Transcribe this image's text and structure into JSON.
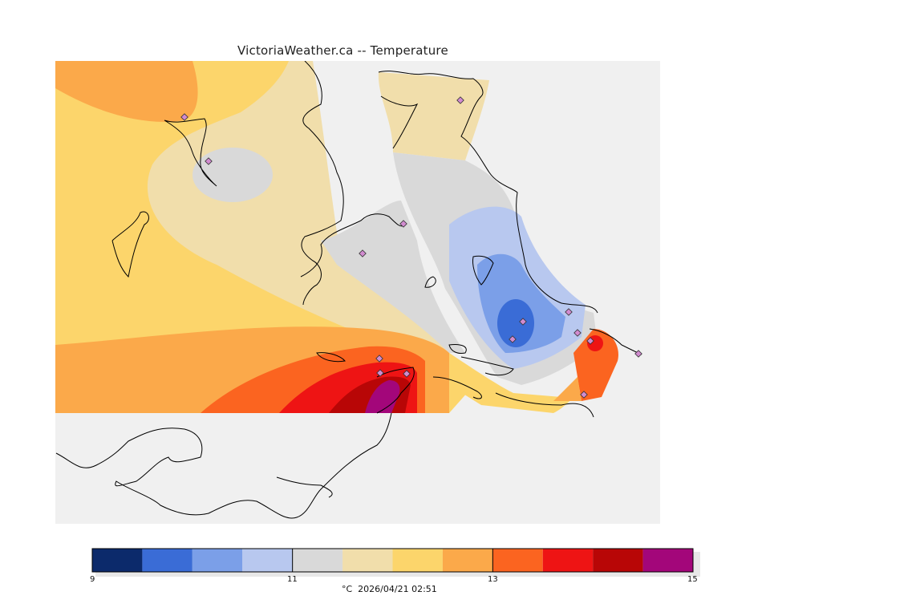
{
  "title": "VictoriaWeather.ca -- Temperature",
  "map": {
    "variable": "Temperature",
    "units": "°C",
    "timestamp": "2026/04/21 02:51",
    "stations": 15
  },
  "legend": {
    "min": 9,
    "max": 15,
    "tick_labels": [
      "9",
      "11",
      "13",
      "15"
    ],
    "bins": [
      {
        "from": 9.0,
        "to": 9.5,
        "color": "#0c2a6b"
      },
      {
        "from": 9.5,
        "to": 10.0,
        "color": "#3a6cd6"
      },
      {
        "from": 10.0,
        "to": 10.5,
        "color": "#7b9fe8"
      },
      {
        "from": 10.5,
        "to": 11.0,
        "color": "#b8c8ef"
      },
      {
        "from": 11.0,
        "to": 11.5,
        "color": "#d9d9d9"
      },
      {
        "from": 11.5,
        "to": 12.0,
        "color": "#f1deab"
      },
      {
        "from": 12.0,
        "to": 12.5,
        "color": "#fcd56b"
      },
      {
        "from": 12.5,
        "to": 13.0,
        "color": "#fba94a"
      },
      {
        "from": 13.0,
        "to": 13.5,
        "color": "#fb6420"
      },
      {
        "from": 13.5,
        "to": 14.0,
        "color": "#ee1414"
      },
      {
        "from": 14.0,
        "to": 14.5,
        "color": "#b80606"
      },
      {
        "from": 14.5,
        "to": 15.0,
        "color": "#a3067a"
      }
    ]
  },
  "caption": "°C  2026/04/21 02:51"
}
